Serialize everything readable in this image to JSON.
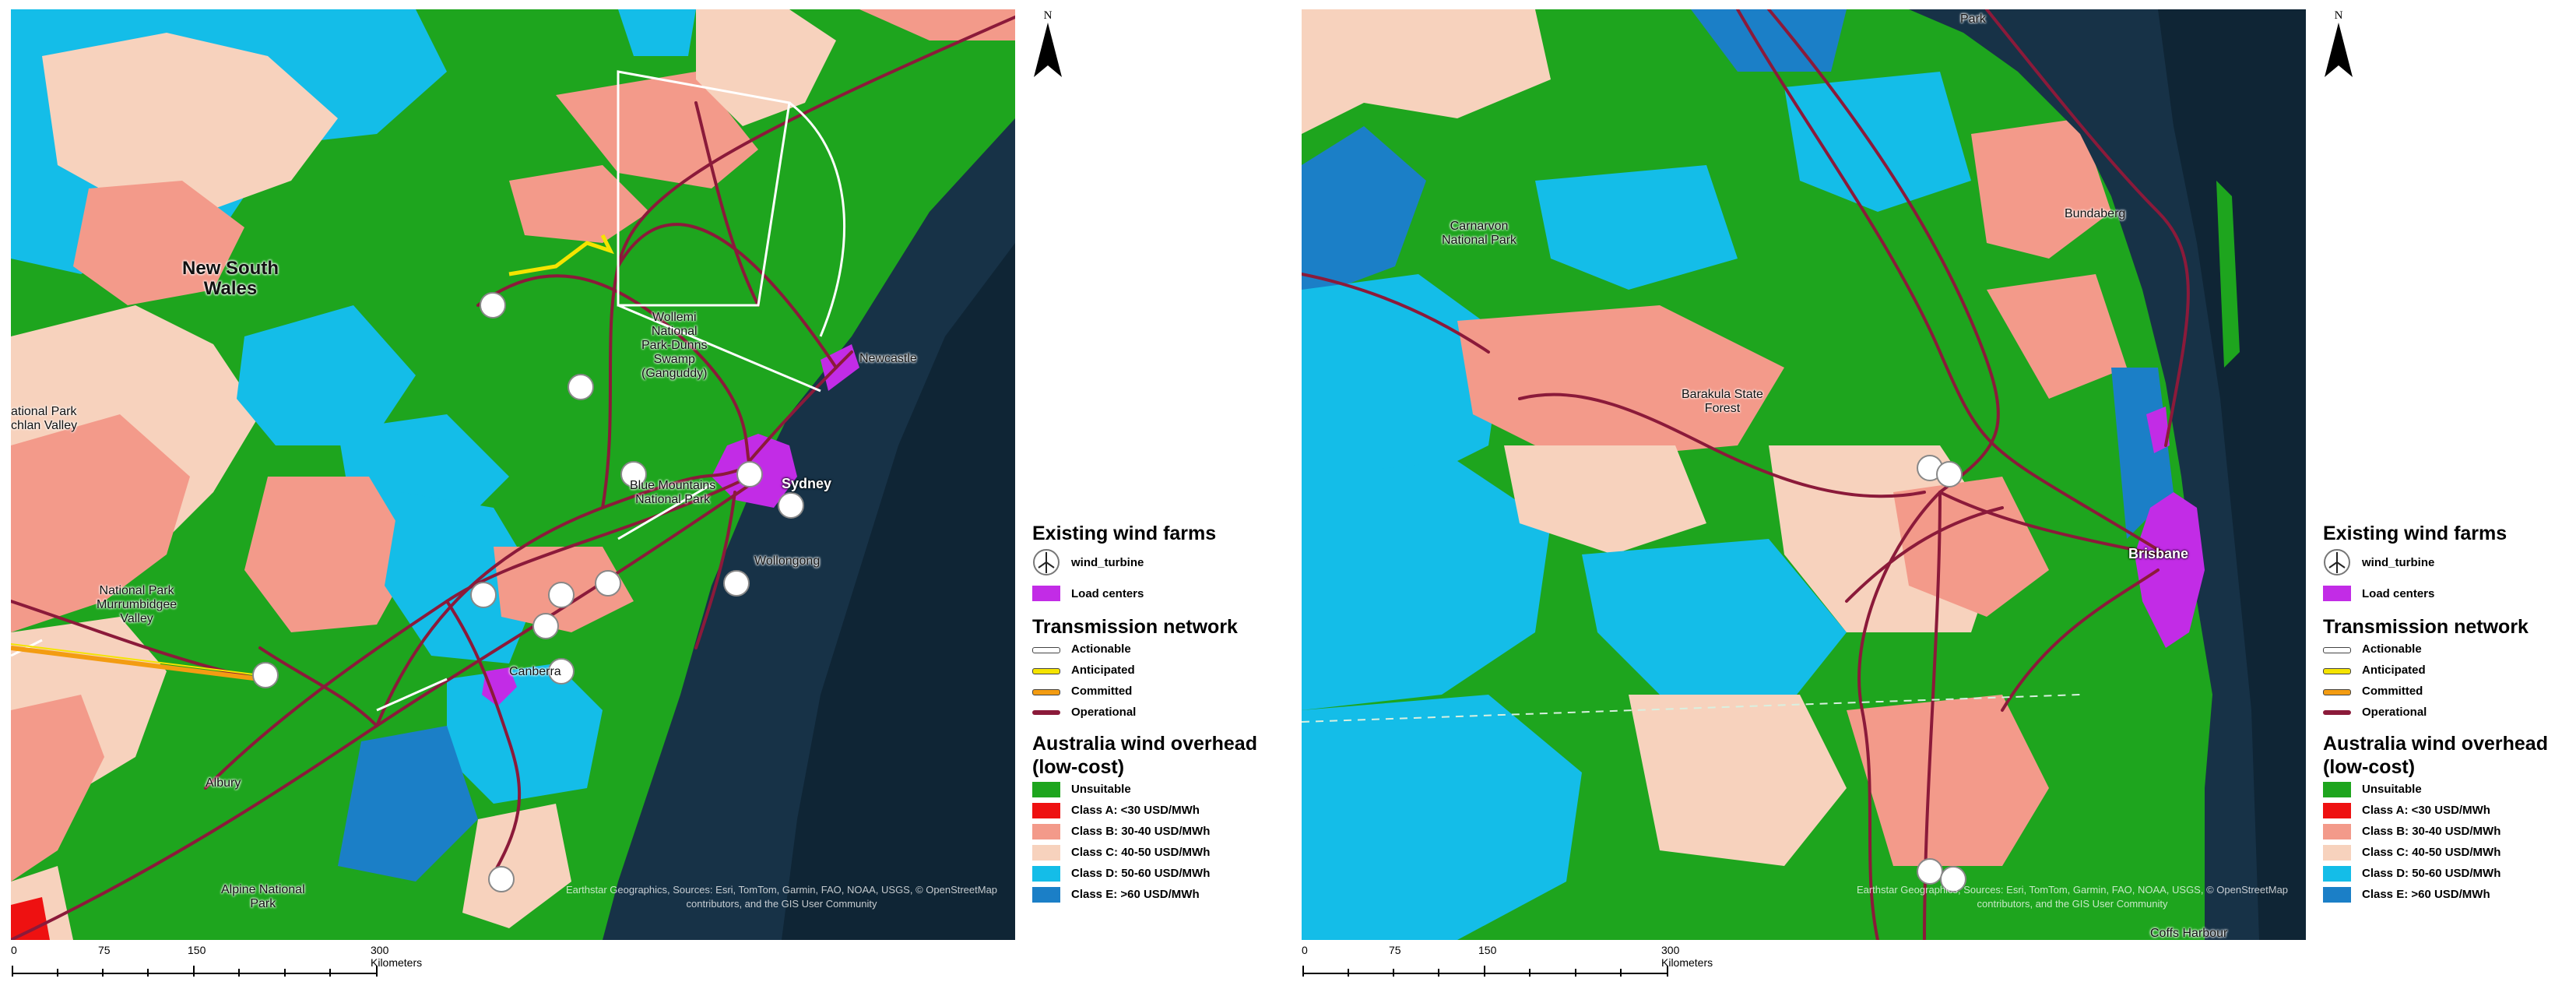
{
  "maps": [
    {
      "labels": [
        {
          "text": "New South\nWales",
          "kind": "big"
        },
        {
          "text": "Wollemi\nNational\nPark-Dunns\nSwamp\n(Ganguddy)",
          "kind": "small"
        },
        {
          "text": "Newcastle",
          "kind": "small"
        },
        {
          "text": "Sydney",
          "kind": "city"
        },
        {
          "text": "Blue Mountains\nNational Park",
          "kind": "small"
        },
        {
          "text": "Wollongong",
          "kind": "small"
        },
        {
          "text": "Canberra",
          "kind": "small"
        },
        {
          "text": "National Park\nMurrumbidgee\nValley",
          "kind": "small"
        },
        {
          "text": "ational Park\nchlan Valley",
          "kind": "small"
        },
        {
          "text": "Albury",
          "kind": "small"
        },
        {
          "text": "Alpine National\nPark",
          "kind": "small"
        }
      ]
    },
    {
      "labels": [
        {
          "text": "Park",
          "kind": "small"
        },
        {
          "text": "Bundaberg",
          "kind": "small"
        },
        {
          "text": "Carnarvon\nNational Park",
          "kind": "small"
        },
        {
          "text": "Barakula State\nForest",
          "kind": "small"
        },
        {
          "text": "Brisbane",
          "kind": "city"
        },
        {
          "text": "Coffs Harbour",
          "kind": "small"
        }
      ]
    }
  ],
  "attribution": "Earthstar Geographics, Sources: Esri, TomTom, Garmin, FAO, NOAA, USGS, © OpenStreetMap contributors, and the GIS User Community",
  "north_label": "N",
  "legend": {
    "wind_heading": "Existing wind farms",
    "wind_item": "wind_turbine",
    "load_item": "Load centers",
    "network_heading": "Transmission network",
    "network_items": [
      {
        "label": "Actionable",
        "color": "#ffffff"
      },
      {
        "label": "Anticipated",
        "color": "#f5e400"
      },
      {
        "label": "Committed",
        "color": "#f39c12"
      },
      {
        "label": "Operational",
        "color": "#8b1a3a"
      }
    ],
    "overhead_heading": "Australia wind overhead\n(low-cost)",
    "overhead_items": [
      {
        "label": "Unsuitable",
        "color": "#1ea51e"
      },
      {
        "label": "Class A: <30 USD/MWh",
        "color": "#ee1111"
      },
      {
        "label": "Class B: 30-40 USD/MWh",
        "color": "#f39a8a"
      },
      {
        "label": "Class C: 40-50 USD/MWh",
        "color": "#f7d2bd"
      },
      {
        "label": "Class D: 50-60 USD/MWh",
        "color": "#14bde8"
      },
      {
        "label": "Class E: >60 USD/MWh",
        "color": "#1b7fc7"
      }
    ],
    "load_color": "#c22ce6"
  },
  "scalebar": {
    "ticks": [
      "0",
      "75",
      "150",
      "300 Kilometers"
    ]
  }
}
